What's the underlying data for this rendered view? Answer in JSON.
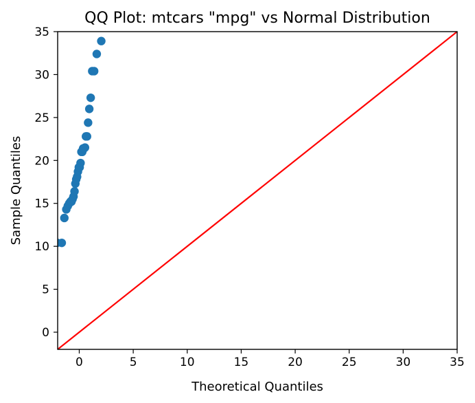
{
  "chart_data": {
    "type": "scatter",
    "title": "QQ Plot: mtcars \"mpg\" vs Normal Distribution",
    "xlabel": "Theoretical Quantiles",
    "ylabel": "Sample Quantiles",
    "xlim": [
      -2.0,
      35.0
    ],
    "ylim": [
      -2.0,
      35.0
    ],
    "xticks": [
      0,
      5,
      10,
      15,
      20,
      25,
      30,
      35
    ],
    "yticks": [
      0,
      5,
      10,
      15,
      20,
      25,
      30,
      35
    ],
    "grid": false,
    "point_color": "#1f77b4",
    "line_color": "#ff0000",
    "reference_line": {
      "from": [
        -2.0,
        -2.0
      ],
      "to": [
        35.0,
        35.0
      ]
    },
    "series": [
      {
        "x": [
          -2.04,
          -1.62,
          -1.38,
          -1.2,
          -1.06,
          -0.93,
          -0.82,
          -0.72,
          -0.62,
          -0.53,
          -0.44,
          -0.36,
          -0.28,
          -0.2,
          -0.12,
          -0.04,
          0.04,
          0.12,
          0.2,
          0.28,
          0.36,
          0.44,
          0.53,
          0.62,
          0.72,
          0.82,
          0.93,
          1.06,
          1.2,
          1.38,
          1.62,
          2.04
        ],
        "y": [
          10.4,
          10.4,
          13.3,
          14.3,
          14.7,
          15.0,
          15.2,
          15.2,
          15.5,
          15.8,
          16.4,
          17.3,
          17.8,
          18.1,
          18.7,
          19.2,
          19.2,
          19.7,
          21.0,
          21.0,
          21.4,
          21.4,
          21.5,
          22.8,
          22.8,
          24.4,
          26.0,
          27.3,
          30.4,
          30.4,
          32.4,
          33.9
        ]
      }
    ]
  }
}
